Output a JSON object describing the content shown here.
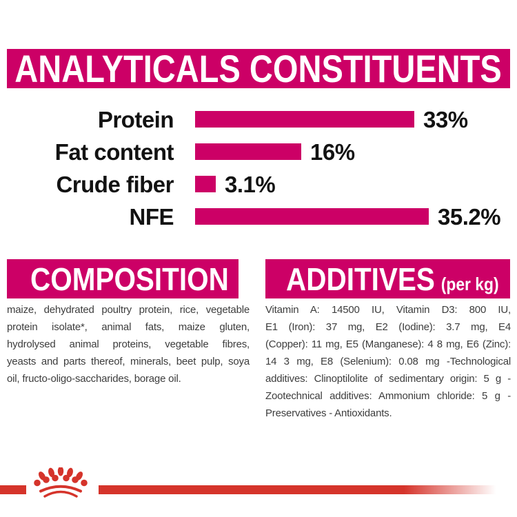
{
  "header": {
    "title": "ANALYTICALS CONSTITUENTS"
  },
  "chart_data": {
    "type": "bar",
    "orientation": "horizontal",
    "title": "ANALYTICALS CONSTITUENTS",
    "categories": [
      "Protein",
      "Fat content",
      "Crude fiber",
      "NFE"
    ],
    "values": [
      33,
      16,
      3.1,
      35.2
    ],
    "value_labels": [
      "33%",
      "16%",
      "3.1%",
      "35.2%"
    ],
    "unit": "%",
    "xlim": [
      0,
      38
    ],
    "grid": false,
    "legend": "none",
    "bar_color": "#cc0066"
  },
  "sections": {
    "composition": {
      "title": "COMPOSITION",
      "text": "maize, dehydrated poultry protein, rice, vegetable protein isolate*, animal fats, maize gluten, hydrolysed animal proteins, vegetable fibres, yeasts and parts thereof, minerals, beet pulp, soya oil, fructo-oligo-saccharides, borage oil.",
      "lines": [
        "maize, dehydrated poultry protein, rice, vegetable",
        "protein isolate*, animal fats, maize gluten,",
        "hydrolysed animal proteins, vegetable fibres,",
        "yeasts and parts thereof, minerals, beet pulp, soya",
        "oil, fructo-oligo-saccharides, borage oil."
      ]
    },
    "additives": {
      "title": "ADDITIVES",
      "title_suffix": "(per kg)",
      "text": "Vitamin A: 14500 IU, Vitamin D3: 800 IU, E1 (Iron): 37 mg, E2 (Iodine): 3.7 mg, E4 (Copper): 11 mg, E5 (Manganese): 4 8 mg, E6 (Zinc): 14 3 mg, E8 (Selenium): 0.08 mg -Technological additives: Clinoptilolite of sedimentary origin: 5 g - Zootechnical additives: Ammonium chloride: 5 g - Preservatives - Antioxidants.",
      "lines": [
        "Vitamin A: 14500 IU, Vitamin D3: 800 IU,",
        "E1 (Iron): 37 mg, E2 (Iodine): 3.7 mg, E4",
        "(Copper): 11 mg, E5 (Manganese): 4 8 mg, E6 (Zinc):",
        "14 3 mg, E8 (Selenium): 0.08 mg -Technological",
        "additives: Clinoptilolite of sedimentary origin: 5 g -",
        "Zootechnical additives: Ammonium chloride: 5 g -",
        "Preservatives - Antioxidants."
      ]
    }
  },
  "footer": {
    "logo_icon": "royal-canin-crown-icon",
    "band_color": "#d5342b"
  },
  "colors": {
    "brand_magenta": "#cc0066",
    "brand_red": "#d5342b",
    "label_black": "#121212",
    "body_gray": "#3d3d3d",
    "background": "#ffffff"
  }
}
